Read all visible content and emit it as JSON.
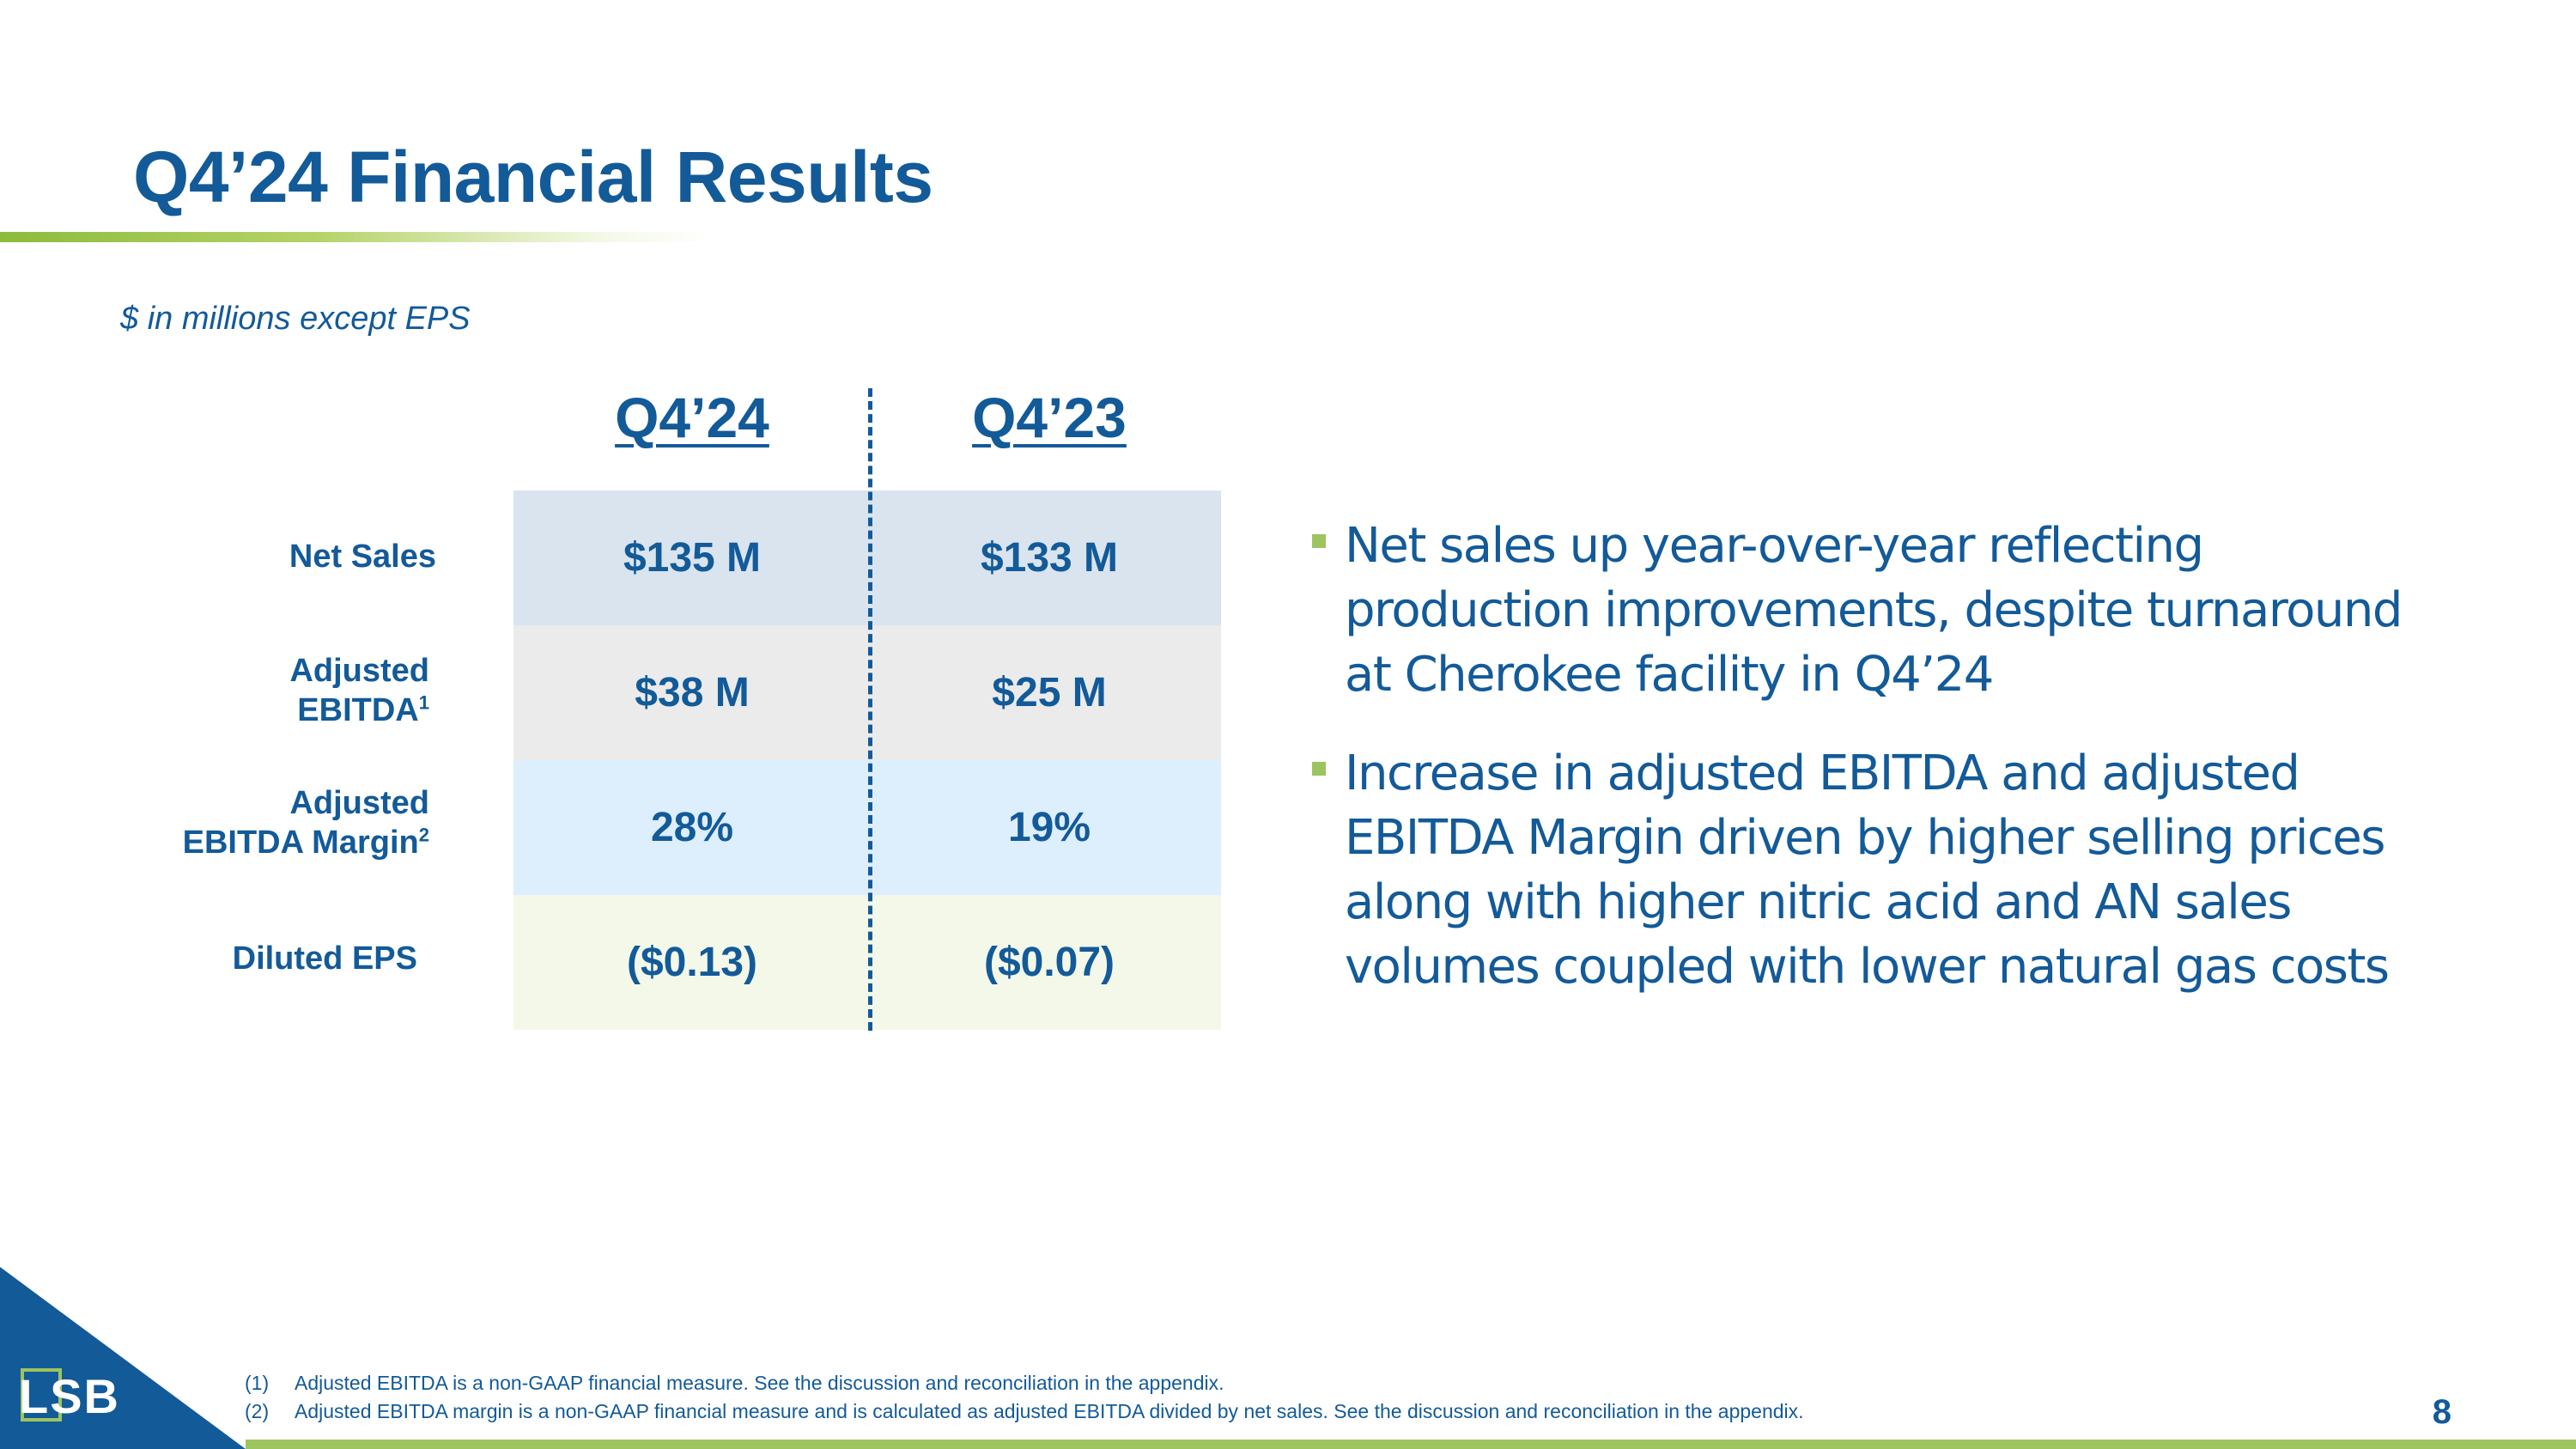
{
  "slide": {
    "title": "Q4’24 Financial Results",
    "subtitle": "$ in millions except EPS",
    "page_number": "8"
  },
  "table": {
    "columns": [
      "Q4’24",
      "Q4’23"
    ],
    "rows": [
      {
        "label": "Net Sales",
        "label_line2": "",
        "sup": "",
        "values": [
          "$135 M",
          "$133 M"
        ]
      },
      {
        "label": "Adjusted",
        "label_line2": "EBITDA",
        "sup": "1",
        "values": [
          "$38 M",
          "$25 M"
        ]
      },
      {
        "label": "Adjusted",
        "label_line2": "EBITDA Margin",
        "sup": "2",
        "values": [
          "28%",
          "19%"
        ]
      },
      {
        "label": "Diluted EPS",
        "label_line2": "",
        "sup": "",
        "values": [
          "($0.13)",
          "($0.07)"
        ]
      }
    ]
  },
  "bullets": [
    "Net sales up year-over-year reflecting production improvements, despite turnaround at Cherokee facility in Q4’24",
    "Increase in adjusted EBITDA and adjusted EBITDA Margin driven by higher selling prices along with higher nitric acid and AN sales volumes coupled with lower natural gas costs"
  ],
  "footnotes": [
    {
      "num": "(1)",
      "text": "Adjusted EBITDA is a non-GAAP financial measure.  See the discussion and reconciliation in the appendix."
    },
    {
      "num": "(2)",
      "text": "Adjusted EBITDA margin is a non-GAAP financial measure and is calculated as adjusted EBITDA divided by net sales. See the discussion and reconciliation in the appendix."
    }
  ],
  "logo": {
    "text": "LSB"
  },
  "colors": {
    "primary": "#135a99",
    "accent_green": "#9dc45f"
  }
}
